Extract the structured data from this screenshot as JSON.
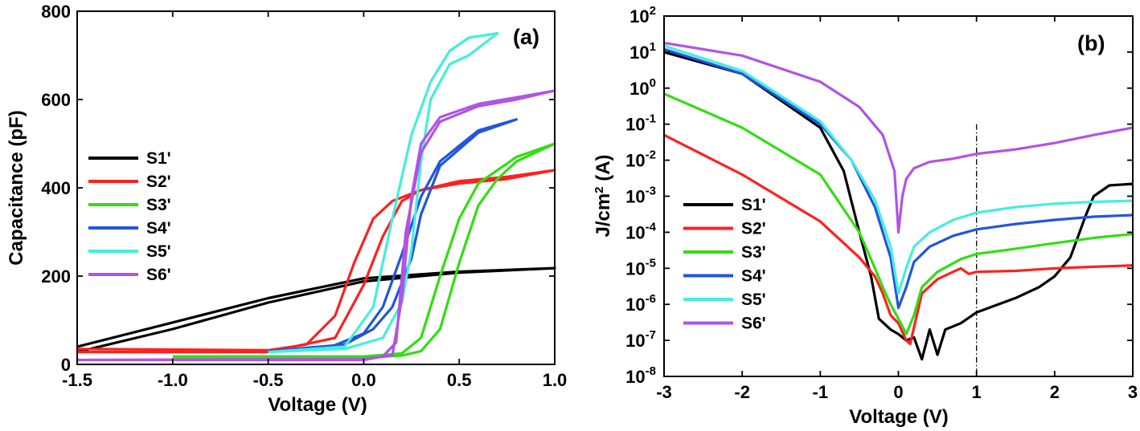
{
  "chart_data": [
    {
      "type": "line",
      "panel_label": "(a)",
      "xlabel": "Voltage (V)",
      "ylabel": "Capacitance (pF)",
      "xlim": [
        -1.5,
        1.0
      ],
      "ylim": [
        0,
        800
      ],
      "xticks": [
        -1.5,
        -1.0,
        -0.5,
        0.0,
        0.5,
        1.0
      ],
      "xtick_labels": [
        "-1.5",
        "-1.0",
        "-0.5",
        "0.0",
        "0.5",
        "1.0"
      ],
      "yticks": [
        0,
        200,
        400,
        600,
        800
      ],
      "ytick_labels": [
        "0",
        "200",
        "400",
        "600",
        "800"
      ],
      "legend_position": "left-middle",
      "series": [
        {
          "name": "S1'",
          "color": "#000000",
          "x": [
            -1.5,
            -1.0,
            -0.5,
            0.0,
            0.5,
            1.0,
            0.5,
            0.0,
            -0.5,
            -1.0,
            -1.5
          ],
          "y": [
            40,
            95,
            150,
            195,
            210,
            218,
            208,
            188,
            140,
            80,
            28
          ]
        },
        {
          "name": "S2'",
          "color": "#ff2020",
          "x": [
            -1.5,
            -0.5,
            -0.3,
            -0.15,
            -0.05,
            0.05,
            0.15,
            0.3,
            0.5,
            0.75,
            1.0,
            0.75,
            0.5,
            0.3,
            0.2,
            0.1,
            0.0,
            -0.15,
            -0.5,
            -1.5
          ],
          "y": [
            35,
            32,
            45,
            110,
            230,
            330,
            370,
            395,
            410,
            420,
            440,
            425,
            415,
            395,
            370,
            290,
            180,
            60,
            28,
            28
          ]
        },
        {
          "name": "S3'",
          "color": "#33dd11",
          "x": [
            -1.0,
            0.0,
            0.2,
            0.3,
            0.4,
            0.5,
            0.6,
            0.8,
            1.0,
            0.8,
            0.7,
            0.6,
            0.5,
            0.4,
            0.3,
            0.2,
            0.0,
            -1.0
          ],
          "y": [
            18,
            18,
            25,
            60,
            200,
            330,
            410,
            470,
            500,
            460,
            420,
            360,
            230,
            80,
            30,
            20,
            16,
            16
          ]
        },
        {
          "name": "S4'",
          "color": "#2255dd",
          "x": [
            -0.5,
            -0.2,
            0.0,
            0.1,
            0.2,
            0.3,
            0.4,
            0.6,
            0.8,
            0.6,
            0.4,
            0.3,
            0.25,
            0.15,
            0.05,
            -0.1,
            -0.5
          ],
          "y": [
            30,
            35,
            70,
            130,
            250,
            380,
            460,
            530,
            555,
            525,
            450,
            340,
            240,
            130,
            80,
            45,
            30
          ]
        },
        {
          "name": "S5'",
          "color": "#44eedd",
          "x": [
            -0.5,
            -0.1,
            0.05,
            0.15,
            0.25,
            0.35,
            0.45,
            0.55,
            0.7,
            0.55,
            0.45,
            0.35,
            0.3,
            0.25,
            0.2,
            0.1,
            -0.1,
            -0.5
          ],
          "y": [
            28,
            40,
            130,
            330,
            520,
            640,
            710,
            740,
            750,
            700,
            680,
            600,
            460,
            260,
            140,
            60,
            35,
            28
          ]
        },
        {
          "name": "S6'",
          "color": "#b053e6",
          "x": [
            -1.5,
            0.0,
            0.15,
            0.2,
            0.25,
            0.3,
            0.4,
            0.6,
            0.8,
            1.0,
            0.8,
            0.6,
            0.4,
            0.3,
            0.22,
            0.17,
            0.1,
            0.0,
            -1.5
          ],
          "y": [
            10,
            12,
            20,
            150,
            380,
            500,
            560,
            590,
            605,
            620,
            600,
            585,
            550,
            480,
            300,
            50,
            18,
            10,
            10
          ]
        }
      ]
    },
    {
      "type": "line",
      "panel_label": "(b)",
      "xlabel": "Voltage (V)",
      "ylabel_prefix": "J/cm",
      "ylabel_sup": "2",
      "ylabel_suffix": " (A)",
      "yscale": "log",
      "xlim": [
        -3,
        3
      ],
      "ylim": [
        1e-08,
        100
      ],
      "xticks": [
        -3,
        -2,
        -1,
        0,
        1,
        2,
        3
      ],
      "xtick_labels": [
        "-3",
        "-2",
        "-1",
        "0",
        "1",
        "2",
        "3"
      ],
      "ytick_exponents": [
        -8,
        -7,
        -6,
        -5,
        -4,
        -3,
        -2,
        -1,
        0,
        1,
        2
      ],
      "ytick_base": "10",
      "ytick_exp_labels": [
        "-8",
        "-7",
        "-6",
        "-5",
        "-4",
        "-3",
        "-2",
        "-1",
        "0",
        "1",
        "2"
      ],
      "reference_line_x": 1,
      "legend_position": "bottom-left",
      "series": [
        {
          "name": "S1'",
          "color": "#000000",
          "x": [
            -3,
            -2,
            -1,
            -0.7,
            -0.5,
            -0.35,
            -0.25,
            -0.1,
            0.0,
            0.1,
            0.2,
            0.3,
            0.4,
            0.5,
            0.6,
            0.8,
            1.0,
            1.5,
            1.8,
            2.0,
            2.2,
            2.4,
            2.5,
            2.7,
            3.0
          ],
          "y": [
            10,
            2.5,
            0.08,
            0.005,
            0.0001,
            6e-06,
            4e-07,
            2e-07,
            1.5e-07,
            1e-07,
            1.2e-07,
            3e-08,
            2e-07,
            4e-08,
            2e-07,
            3e-07,
            6e-07,
            1.5e-06,
            3e-06,
            6e-06,
            2e-05,
            0.0003,
            0.001,
            0.002,
            0.0022
          ]
        },
        {
          "name": "S2'",
          "color": "#ff2020",
          "x": [
            -3,
            -2,
            -1,
            -0.5,
            -0.3,
            -0.2,
            -0.1,
            0.0,
            0.1,
            0.15,
            0.3,
            0.5,
            0.7,
            0.8,
            0.9,
            1.0,
            1.5,
            2.0,
            2.5,
            3.0
          ],
          "y": [
            0.05,
            0.004,
            0.0002,
            2e-05,
            6e-06,
            2e-06,
            5e-07,
            3e-07,
            1e-07,
            8e-08,
            2e-06,
            5e-06,
            8e-06,
            1e-05,
            7e-06,
            8e-06,
            8.5e-06,
            1e-05,
            1.1e-05,
            1.2e-05
          ]
        },
        {
          "name": "S3'",
          "color": "#33dd11",
          "x": [
            -3,
            -2,
            -1,
            -0.5,
            -0.3,
            -0.2,
            -0.1,
            0.0,
            0.1,
            0.2,
            0.3,
            0.5,
            0.8,
            1.0,
            1.5,
            2.0,
            2.5,
            3.0
          ],
          "y": [
            0.7,
            0.08,
            0.004,
            0.0001,
            1e-05,
            3e-06,
            1e-06,
            4e-07,
            1.5e-07,
            5e-07,
            3e-06,
            8e-06,
            1.8e-05,
            2.5e-05,
            3.5e-05,
            5e-05,
            7e-05,
            9e-05
          ]
        },
        {
          "name": "S4'",
          "color": "#2255dd",
          "x": [
            -3,
            -2,
            -1,
            -0.6,
            -0.3,
            -0.1,
            0.0,
            0.1,
            0.2,
            0.4,
            0.7,
            1.0,
            1.5,
            2.0,
            2.5,
            3.0
          ],
          "y": [
            12,
            2.5,
            0.1,
            0.01,
            0.0005,
            2e-05,
            8e-07,
            3e-06,
            1.5e-05,
            4e-05,
            8e-05,
            0.00012,
            0.00017,
            0.00022,
            0.00027,
            0.0003
          ]
        },
        {
          "name": "S5'",
          "color": "#44eedd",
          "x": [
            -3,
            -2,
            -1,
            -0.6,
            -0.3,
            -0.1,
            0.0,
            0.1,
            0.2,
            0.4,
            0.7,
            1.0,
            1.5,
            2.0,
            2.5,
            3.0
          ],
          "y": [
            15,
            3,
            0.12,
            0.01,
            0.0008,
            4e-05,
            2e-06,
            1e-05,
            4e-05,
            0.0001,
            0.00022,
            0.00035,
            0.0005,
            0.00062,
            0.0007,
            0.00075
          ]
        },
        {
          "name": "S6'",
          "color": "#b053e6",
          "x": [
            -3,
            -2,
            -1,
            -0.5,
            -0.2,
            -0.05,
            0.0,
            0.05,
            0.1,
            0.2,
            0.4,
            0.7,
            1.0,
            1.5,
            2.0,
            2.5,
            3.0
          ],
          "y": [
            18,
            8,
            1.5,
            0.3,
            0.05,
            0.005,
            0.0001,
            0.001,
            0.003,
            0.006,
            0.009,
            0.011,
            0.015,
            0.02,
            0.03,
            0.05,
            0.08
          ]
        }
      ]
    }
  ]
}
